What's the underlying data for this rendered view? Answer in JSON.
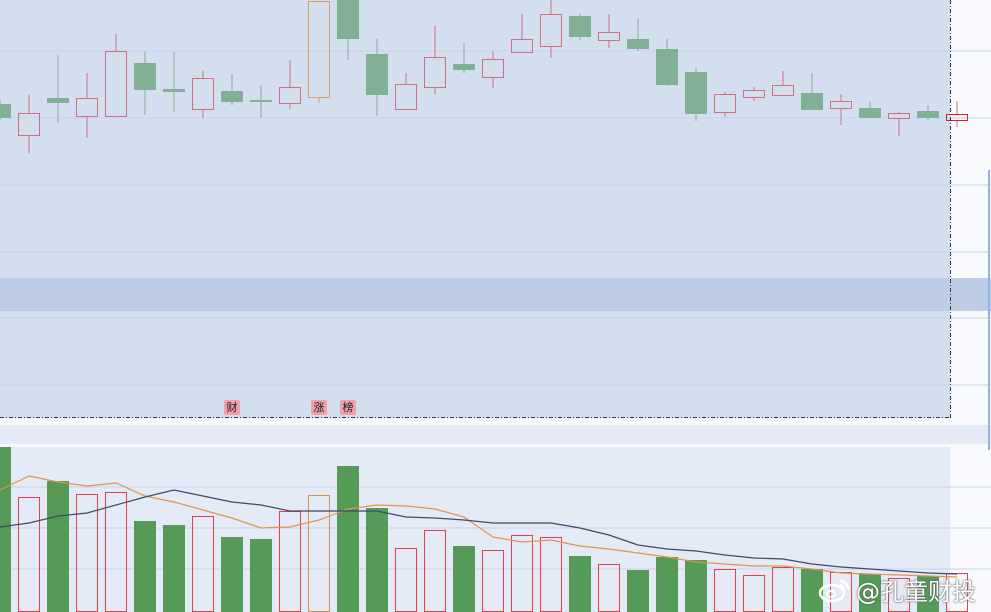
{
  "chart_data": [
    {
      "type": "candlestick",
      "title": "",
      "colors": {
        "up": "#d0707f",
        "down": "#82b096",
        "limit_up": "#d49a70",
        "current": "#e0202e",
        "background": "#d3deef"
      },
      "ylim": [
        8.2,
        50.0
      ],
      "gridlines": [
        44.9,
        38.2,
        31.5,
        24.8,
        18.2,
        11.5
      ],
      "highlight_band": [
        18.9,
        22.2
      ],
      "candles": [
        {
          "o": 39.6,
          "h": 40.0,
          "l": 38.0,
          "c": 38.2
        },
        {
          "o": 36.4,
          "h": 40.5,
          "l": 34.7,
          "c": 38.7
        },
        {
          "o": 40.2,
          "h": 44.5,
          "l": 37.7,
          "c": 39.7
        },
        {
          "o": 38.3,
          "h": 42.7,
          "l": 36.2,
          "c": 40.2
        },
        {
          "o": 38.3,
          "h": 46.6,
          "l": 38.3,
          "c": 44.9
        },
        {
          "o": 43.7,
          "h": 44.9,
          "l": 38.5,
          "c": 41.0
        },
        {
          "o": 41.1,
          "h": 44.8,
          "l": 38.8,
          "c": 40.8
        },
        {
          "o": 39.0,
          "h": 42.9,
          "l": 38.2,
          "c": 42.2
        },
        {
          "o": 40.9,
          "h": 42.6,
          "l": 39.5,
          "c": 39.8
        },
        {
          "o": 40.0,
          "h": 41.5,
          "l": 38.2,
          "c": 39.8
        },
        {
          "o": 39.6,
          "h": 44.0,
          "l": 39.1,
          "c": 41.3
        },
        {
          "o": 40.2,
          "h": 49.9,
          "l": 39.7,
          "c": 49.9,
          "limit_up": true
        },
        {
          "o": 50.5,
          "h": 50.5,
          "l": 44.0,
          "c": 46.1
        },
        {
          "o": 44.6,
          "h": 46.1,
          "l": 38.4,
          "c": 40.5
        },
        {
          "o": 39.0,
          "h": 42.7,
          "l": 39.0,
          "c": 41.6
        },
        {
          "o": 41.2,
          "h": 47.4,
          "l": 40.6,
          "c": 44.3
        },
        {
          "o": 43.6,
          "h": 45.7,
          "l": 42.7,
          "c": 43.0
        },
        {
          "o": 42.2,
          "h": 44.9,
          "l": 41.2,
          "c": 44.1
        },
        {
          "o": 44.7,
          "h": 48.6,
          "l": 44.7,
          "c": 46.1
        },
        {
          "o": 45.3,
          "h": 50.2,
          "l": 44.2,
          "c": 48.6
        },
        {
          "o": 48.4,
          "h": 48.6,
          "l": 46.0,
          "c": 46.3
        },
        {
          "o": 45.9,
          "h": 48.6,
          "l": 45.2,
          "c": 46.8
        },
        {
          "o": 46.1,
          "h": 48.2,
          "l": 44.9,
          "c": 45.1
        },
        {
          "o": 45.1,
          "h": 46.1,
          "l": 41.4,
          "c": 41.5
        },
        {
          "o": 42.8,
          "h": 43.2,
          "l": 37.9,
          "c": 38.6
        },
        {
          "o": 38.7,
          "h": 40.8,
          "l": 38.3,
          "c": 40.6
        },
        {
          "o": 40.2,
          "h": 41.3,
          "l": 39.9,
          "c": 41.0
        },
        {
          "o": 40.4,
          "h": 42.9,
          "l": 40.4,
          "c": 41.5
        },
        {
          "o": 40.7,
          "h": 42.7,
          "l": 39.0,
          "c": 39.0
        },
        {
          "o": 39.1,
          "h": 40.6,
          "l": 37.5,
          "c": 39.9
        },
        {
          "o": 39.2,
          "h": 39.8,
          "l": 38.2,
          "c": 38.2
        },
        {
          "o": 38.1,
          "h": 38.8,
          "l": 36.4,
          "c": 38.7
        },
        {
          "o": 38.9,
          "h": 39.5,
          "l": 38.0,
          "c": 38.2
        },
        {
          "o": 37.9,
          "h": 39.9,
          "l": 37.3,
          "c": 38.6,
          "current": true
        }
      ],
      "event_markers": [
        {
          "index": 8,
          "label": "财"
        },
        {
          "index": 11,
          "label": "涨"
        },
        {
          "index": 12,
          "label": "榜"
        }
      ]
    },
    {
      "type": "bar",
      "title": "",
      "colors": {
        "up": "#e0404e",
        "down": "#559a57",
        "limit_up": "#d8904a",
        "ma_short": "#e0954f",
        "ma_long": "#3e4a68",
        "background": "#e4ebf7"
      },
      "ylim": [
        0,
        164
      ],
      "gridlines": [
        124,
        83,
        42
      ],
      "volumes": [
        164,
        114,
        130,
        117,
        119,
        90,
        86,
        95,
        74,
        72,
        100,
        116,
        145,
        103,
        63,
        81,
        65,
        61,
        76,
        74,
        55,
        47,
        41,
        54,
        51,
        42,
        36,
        44,
        42,
        39,
        37,
        33,
        35,
        38
      ],
      "series": [
        {
          "values": [
            121,
            135,
            129,
            125,
            128,
            115,
            109,
            101,
            93,
            83,
            84,
            91,
            102,
            106,
            105,
            102,
            94,
            74,
            69,
            71,
            65,
            62,
            58,
            54,
            49,
            47,
            45,
            45,
            42,
            38,
            37,
            36,
            35,
            34
          ]
        },
        {
          "values": [
            84,
            88,
            95,
            98,
            106,
            114,
            121,
            115,
            109,
            106,
            100,
            100,
            100,
            100,
            94,
            93,
            91,
            88,
            88,
            88,
            83,
            76,
            66,
            62,
            60,
            56,
            53,
            52,
            47,
            44,
            42,
            40,
            38,
            37
          ]
        }
      ]
    }
  ],
  "watermark": {
    "text": "@孔童财投",
    "icon": "weibo-icon"
  }
}
